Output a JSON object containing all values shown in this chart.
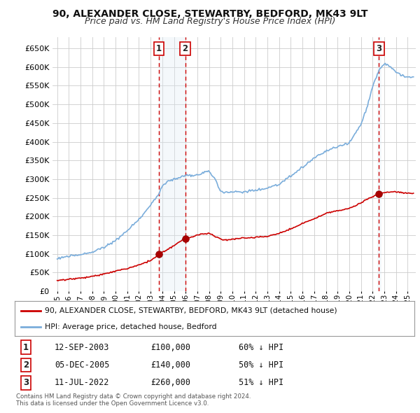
{
  "title": "90, ALEXANDER CLOSE, STEWARTBY, BEDFORD, MK43 9LT",
  "subtitle": "Price paid vs. HM Land Registry's House Price Index (HPI)",
  "title_fontsize": 10,
  "subtitle_fontsize": 9,
  "ylim": [
    0,
    680000
  ],
  "yticks": [
    0,
    50000,
    100000,
    150000,
    200000,
    250000,
    300000,
    350000,
    400000,
    450000,
    500000,
    550000,
    600000,
    650000
  ],
  "background_color": "#ffffff",
  "plot_bg_color": "#ffffff",
  "grid_color": "#cccccc",
  "legend_line1": "90, ALEXANDER CLOSE, STEWARTBY, BEDFORD, MK43 9LT (detached house)",
  "legend_line2": "HPI: Average price, detached house, Bedford",
  "red_color": "#cc0000",
  "blue_color": "#7aaddb",
  "vline_color": "#cc0000",
  "highlight_color": "#dde8f5",
  "footer": "Contains HM Land Registry data © Crown copyright and database right 2024.\nThis data is licensed under the Open Government Licence v3.0."
}
